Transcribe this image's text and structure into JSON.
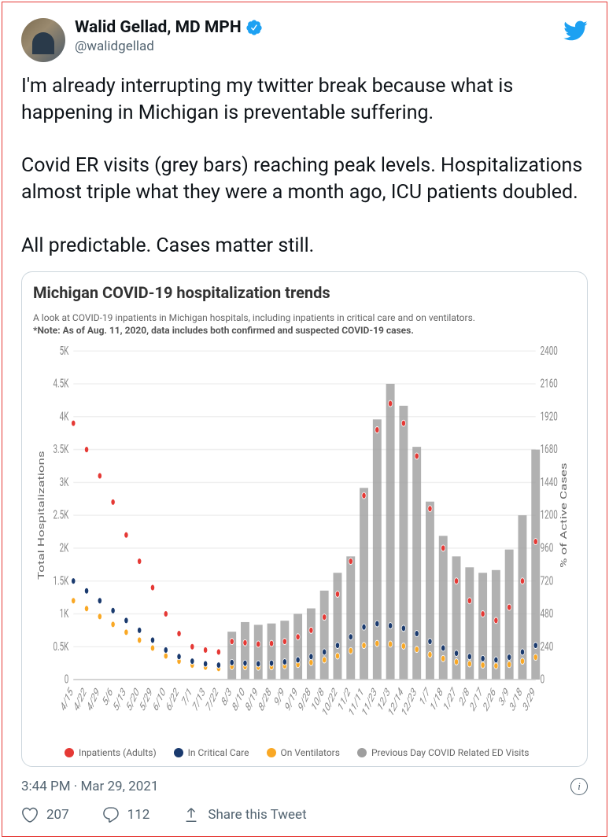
{
  "user": {
    "display_name": "Walid Gellad, MD MPH",
    "handle": "@walidgellad"
  },
  "tweet": {
    "text": "I'm already interrupting my twitter break because what is happening in Michigan is preventable suffering.\n\nCovid ER visits (grey bars) reaching peak levels. Hospitalizations almost triple what they were a month ago, ICU patients doubled.\n\nAll predictable. Cases matter still.",
    "timestamp": "3:44 PM · Mar 29, 2021",
    "likes": "207",
    "replies": "112",
    "share_label": "Share this Tweet"
  },
  "chart": {
    "type": "combo-bar-line",
    "title": "Michigan COVID-19 hospitalization trends",
    "subtitle": "A look at COVID-19 inpatients in Michigan hospitals, including inpatients in critical care and on ventilators.",
    "note": "*Note: As of Aug. 11, 2020, data includes both confirmed and suspected COVID-19 cases.",
    "left_axis": {
      "label": "Total Hospitalizations",
      "ticks": [
        "0",
        "0.5K",
        "1K",
        "1.5K",
        "2K",
        "2.5K",
        "3K",
        "3.5K",
        "4K",
        "4.5K",
        "5K"
      ],
      "min": 0,
      "max": 5000
    },
    "right_axis": {
      "label": "% of Active Cases",
      "ticks": [
        "0",
        "240",
        "480",
        "720",
        "960",
        "1200",
        "1440",
        "1680",
        "1920",
        "2160",
        "2400"
      ],
      "min": 0,
      "max": 2400
    },
    "x_ticks": [
      "4/15",
      "4/22",
      "4/29",
      "5/6",
      "5/13",
      "5/20",
      "5/29",
      "6/10",
      "6/22",
      "7/1",
      "7/13",
      "7/22",
      "8/3",
      "8/10",
      "8/19",
      "8/28",
      "9/9",
      "9/19",
      "9/28",
      "10/8",
      "10/22",
      "11/2",
      "11/11",
      "11/23",
      "12/3",
      "12/14",
      "12/23",
      "1/7",
      "1/18",
      "1/27",
      "2/8",
      "2/17",
      "2/26",
      "3/9",
      "3/18",
      "3/29"
    ],
    "series": {
      "bars": {
        "label": "Previous Day COVID Related ED Visits",
        "color": "#9e9e9e",
        "right_axis": true,
        "values": [
          0,
          0,
          0,
          0,
          0,
          0,
          0,
          0,
          0,
          0,
          0,
          0,
          350,
          420,
          400,
          410,
          430,
          480,
          520,
          650,
          780,
          900,
          1400,
          1900,
          2160,
          2000,
          1700,
          1300,
          1050,
          900,
          820,
          780,
          800,
          950,
          1200,
          1680
        ]
      },
      "inpatients": {
        "label": "Inpatients (Adults)",
        "color": "#e53935",
        "values": [
          3900,
          3500,
          3100,
          2700,
          2200,
          1800,
          1400,
          1000,
          700,
          500,
          450,
          420,
          580,
          560,
          540,
          550,
          580,
          650,
          750,
          950,
          1300,
          1800,
          2800,
          3800,
          4200,
          3900,
          3400,
          2600,
          2000,
          1500,
          1200,
          1000,
          900,
          1100,
          1500,
          2100
        ]
      },
      "critical": {
        "label": "In Critical Care",
        "color": "#1a3a6e",
        "values": [
          1500,
          1350,
          1200,
          1050,
          900,
          750,
          600,
          450,
          350,
          280,
          240,
          220,
          260,
          250,
          240,
          250,
          270,
          300,
          350,
          420,
          520,
          650,
          800,
          850,
          820,
          780,
          700,
          580,
          480,
          400,
          350,
          320,
          300,
          340,
          420,
          520
        ]
      },
      "ventilators": {
        "label": "On Ventilators",
        "color": "#f9a825",
        "values": [
          1200,
          1080,
          960,
          840,
          720,
          600,
          480,
          360,
          280,
          220,
          190,
          170,
          200,
          195,
          190,
          195,
          210,
          230,
          260,
          300,
          360,
          440,
          520,
          550,
          540,
          510,
          460,
          380,
          320,
          270,
          240,
          220,
          210,
          230,
          280,
          340
        ]
      }
    },
    "legend_order": [
      "inpatients",
      "critical",
      "ventilators",
      "bars"
    ],
    "colors": {
      "grid": "#f0f0f0",
      "axis": "#cccccc",
      "text": "#888888"
    },
    "plot": {
      "font_size_axis": 10
    }
  }
}
